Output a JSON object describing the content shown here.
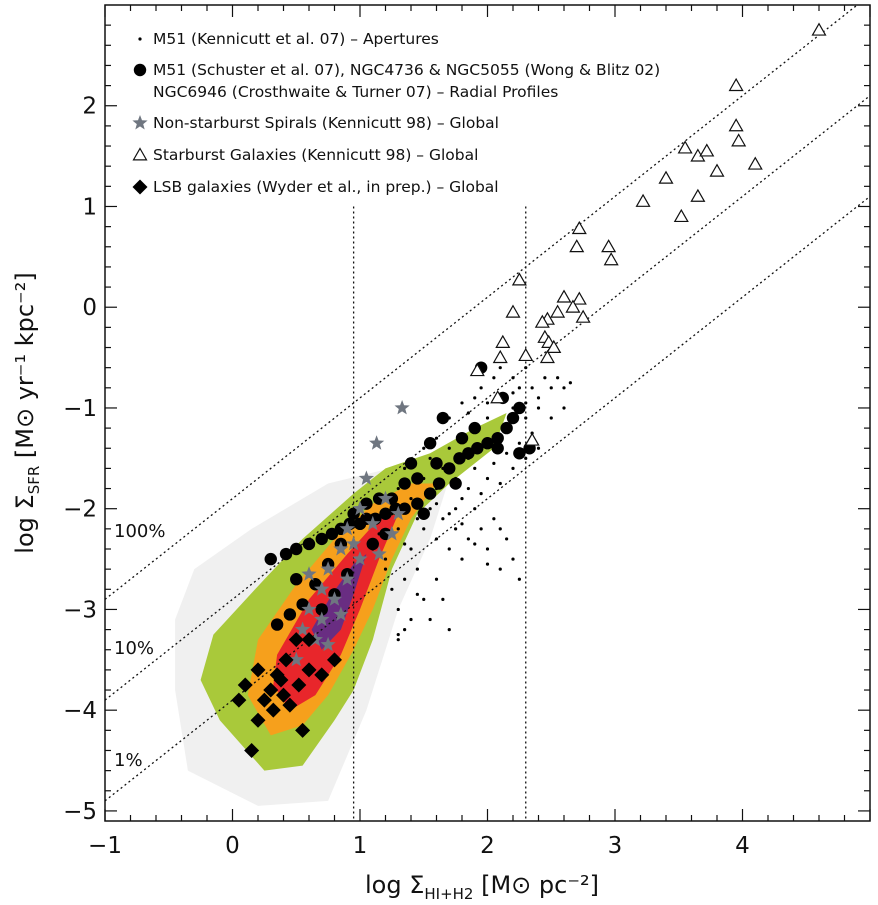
{
  "chart_data": {
    "type": "scatter",
    "title": "",
    "xlabel": {
      "prefix": "log Σ",
      "sub": "HI+H2",
      "unit": " [M⊙ pc⁻²]"
    },
    "ylabel": {
      "prefix": "log Σ",
      "sub": "SFR",
      "unit": " [M⊙ yr⁻¹ kpc⁻²]"
    },
    "xlim": [
      -1,
      5
    ],
    "ylim": [
      -5.1,
      3.0
    ],
    "x_ticks": [
      -1,
      0,
      1,
      2,
      3,
      4
    ],
    "y_ticks": [
      -5,
      -4,
      -3,
      -2,
      -1,
      0,
      1,
      2
    ],
    "grid": false,
    "legend_position": "top-left",
    "colors": {
      "marker_dark": "#000000",
      "star": "#6f7680",
      "contour_green": "#a9c93a",
      "contour_orange": "#f6a01c",
      "contour_red": "#e8262b",
      "contour_purple": "#5b2f8c",
      "background_grey": "#e9e9e9"
    },
    "legend": [
      {
        "marker": "dot",
        "label": "M51 (Kennicutt et al. 07) – Apertures"
      },
      {
        "marker": "circle",
        "label": "M51 (Schuster et al. 07), NGC4736 & NGC5055 (Wong & Blitz 02)"
      },
      {
        "marker": "none",
        "label": "NGC6946 (Crosthwaite & Turner 07) – Radial Profiles"
      },
      {
        "marker": "star",
        "label": "Non-starburst Spirals (Kennicutt 98) – Global"
      },
      {
        "marker": "triangle",
        "label": "Starburst Galaxies (Kennicutt 98) – Global"
      },
      {
        "marker": "diamond",
        "label": "LSB galaxies (Wyder et al., in prep.) – Global"
      }
    ],
    "efficiency_lines": [
      {
        "label": "100%",
        "intercept": -1.9
      },
      {
        "label": "10%",
        "intercept": -2.9
      },
      {
        "label": "1%",
        "intercept": -3.9
      }
    ],
    "vertical_lines_x": [
      0.95,
      2.3
    ],
    "series": [
      {
        "marker": "dot",
        "points": [
          [
            1.3,
            -1.8
          ],
          [
            1.35,
            -1.6
          ],
          [
            1.4,
            -1.9
          ],
          [
            1.5,
            -1.7
          ],
          [
            1.55,
            -1.5
          ],
          [
            1.6,
            -1.8
          ],
          [
            1.65,
            -1.6
          ],
          [
            1.7,
            -1.4
          ],
          [
            1.75,
            -1.7
          ],
          [
            1.8,
            -1.3
          ],
          [
            1.85,
            -1.5
          ],
          [
            1.9,
            -1.2
          ],
          [
            1.95,
            -1.4
          ],
          [
            2.0,
            -1.1
          ],
          [
            2.05,
            -1.3
          ],
          [
            2.1,
            -0.9
          ],
          [
            2.15,
            -1.2
          ],
          [
            2.2,
            -1.0
          ],
          [
            2.25,
            -0.8
          ],
          [
            2.3,
            -1.1
          ],
          [
            1.95,
            -0.8
          ],
          [
            2.05,
            -0.7
          ],
          [
            2.1,
            -0.6
          ],
          [
            2.2,
            -0.7
          ],
          [
            2.3,
            -0.6
          ],
          [
            2.4,
            -0.9
          ],
          [
            2.45,
            -0.7
          ],
          [
            2.5,
            -0.8
          ],
          [
            2.55,
            -0.7
          ],
          [
            2.6,
            -0.8
          ],
          [
            2.65,
            -0.75
          ],
          [
            2.35,
            -0.8
          ],
          [
            2.4,
            -1.0
          ],
          [
            2.5,
            -1.1
          ],
          [
            2.6,
            -1.0
          ],
          [
            1.8,
            -0.95
          ],
          [
            1.85,
            -1.05
          ],
          [
            1.9,
            -0.9
          ],
          [
            2.0,
            -0.95
          ],
          [
            1.7,
            -1.1
          ],
          [
            1.6,
            -1.3
          ],
          [
            1.5,
            -1.4
          ],
          [
            1.45,
            -2.1
          ],
          [
            1.5,
            -2.2
          ],
          [
            1.55,
            -2.0
          ],
          [
            1.6,
            -2.3
          ],
          [
            1.65,
            -2.1
          ],
          [
            1.7,
            -2.4
          ],
          [
            1.75,
            -2.2
          ],
          [
            1.8,
            -2.5
          ],
          [
            1.85,
            -2.3
          ],
          [
            1.9,
            -2.0
          ],
          [
            1.95,
            -2.2
          ],
          [
            2.0,
            -2.4
          ],
          [
            2.05,
            -2.1
          ],
          [
            2.1,
            -2.6
          ],
          [
            2.15,
            -2.3
          ],
          [
            2.2,
            -2.5
          ],
          [
            2.25,
            -2.7
          ],
          [
            1.2,
            -2.5
          ],
          [
            1.25,
            -2.8
          ],
          [
            1.3,
            -3.0
          ],
          [
            1.35,
            -2.7
          ],
          [
            1.4,
            -3.1
          ],
          [
            1.3,
            -3.3
          ],
          [
            1.5,
            -2.9
          ],
          [
            1.55,
            -3.1
          ],
          [
            1.6,
            -2.7
          ],
          [
            1.65,
            -2.9
          ],
          [
            1.7,
            -3.2
          ],
          [
            1.4,
            -2.4
          ],
          [
            1.45,
            -2.6
          ],
          [
            1.75,
            -2.0
          ],
          [
            1.8,
            -1.9
          ],
          [
            1.85,
            -1.8
          ],
          [
            1.9,
            -1.6
          ],
          [
            1.95,
            -1.85
          ],
          [
            2.0,
            -1.7
          ],
          [
            2.05,
            -1.55
          ],
          [
            2.1,
            -1.75
          ],
          [
            2.15,
            -1.45
          ],
          [
            2.2,
            -1.6
          ],
          [
            2.25,
            -1.35
          ],
          [
            2.3,
            -1.5
          ],
          [
            2.35,
            -1.25
          ],
          [
            2.4,
            -1.4
          ],
          [
            1.25,
            -2.05
          ],
          [
            1.3,
            -2.2
          ],
          [
            1.35,
            -2.35
          ],
          [
            1.15,
            -2.25
          ],
          [
            1.1,
            -2.4
          ],
          [
            1.2,
            -2.6
          ],
          [
            1.6,
            -1.95
          ],
          [
            1.7,
            -2.05
          ],
          [
            1.8,
            -2.15
          ],
          [
            1.9,
            -2.35
          ],
          [
            2.0,
            -2.55
          ],
          [
            2.1,
            -2.2
          ],
          [
            1.3,
            -3.25
          ],
          [
            1.35,
            -3.2
          ],
          [
            1.45,
            -2.85
          ],
          [
            2.3,
            -0.95
          ],
          [
            2.2,
            -0.85
          ]
        ]
      },
      {
        "marker": "circle",
        "points": [
          [
            0.3,
            -2.5
          ],
          [
            0.42,
            -2.45
          ],
          [
            0.5,
            -2.4
          ],
          [
            0.6,
            -2.35
          ],
          [
            0.7,
            -2.3
          ],
          [
            0.78,
            -2.25
          ],
          [
            0.85,
            -2.2
          ],
          [
            0.92,
            -2.15
          ],
          [
            1.0,
            -2.15
          ],
          [
            1.05,
            -2.1
          ],
          [
            1.12,
            -2.1
          ],
          [
            1.2,
            -2.05
          ],
          [
            1.28,
            -2.0
          ],
          [
            1.35,
            -2.0
          ],
          [
            1.45,
            -1.95
          ],
          [
            1.55,
            -1.85
          ],
          [
            1.62,
            -1.75
          ],
          [
            1.7,
            -1.6
          ],
          [
            1.78,
            -1.5
          ],
          [
            1.85,
            -1.45
          ],
          [
            1.92,
            -1.4
          ],
          [
            2.0,
            -1.35
          ],
          [
            2.08,
            -1.3
          ],
          [
            2.15,
            -1.2
          ],
          [
            2.2,
            -1.1
          ],
          [
            2.25,
            -1.0
          ],
          [
            2.33,
            -1.4
          ],
          [
            1.65,
            -1.1
          ],
          [
            1.55,
            -1.35
          ],
          [
            1.6,
            -1.55
          ],
          [
            1.45,
            -1.7
          ],
          [
            1.35,
            -1.75
          ],
          [
            1.25,
            -1.9
          ],
          [
            1.15,
            -1.9
          ],
          [
            1.05,
            -1.95
          ],
          [
            0.95,
            -2.05
          ],
          [
            0.85,
            -2.35
          ],
          [
            0.75,
            -2.55
          ],
          [
            0.65,
            -2.75
          ],
          [
            0.55,
            -2.95
          ],
          [
            0.45,
            -3.05
          ],
          [
            0.35,
            -3.15
          ],
          [
            0.5,
            -2.7
          ],
          [
            1.95,
            -0.6
          ],
          [
            2.12,
            -0.9
          ],
          [
            1.9,
            -1.2
          ],
          [
            2.08,
            -1.4
          ],
          [
            1.8,
            -1.3
          ],
          [
            2.25,
            -1.45
          ],
          [
            1.75,
            -1.75
          ],
          [
            1.2,
            -2.25
          ],
          [
            1.1,
            -2.35
          ],
          [
            0.9,
            -2.65
          ],
          [
            0.8,
            -2.85
          ],
          [
            0.7,
            -3.0
          ],
          [
            1.5,
            -2.05
          ],
          [
            1.4,
            -1.55
          ]
        ]
      },
      {
        "marker": "star",
        "points": [
          [
            1.33,
            -1.0
          ],
          [
            1.13,
            -1.35
          ],
          [
            1.05,
            -1.7
          ],
          [
            1.2,
            -1.9
          ],
          [
            1.0,
            -2.0
          ],
          [
            0.9,
            -2.2
          ],
          [
            1.1,
            -2.15
          ],
          [
            0.95,
            -2.35
          ],
          [
            0.85,
            -2.4
          ],
          [
            1.0,
            -2.5
          ],
          [
            0.75,
            -2.6
          ],
          [
            0.9,
            -2.7
          ],
          [
            0.7,
            -2.8
          ],
          [
            0.8,
            -2.9
          ],
          [
            0.6,
            -3.0
          ],
          [
            0.7,
            -3.1
          ],
          [
            0.55,
            -3.2
          ],
          [
            0.65,
            -3.3
          ],
          [
            0.75,
            -3.35
          ],
          [
            0.6,
            -2.65
          ],
          [
            0.5,
            -3.5
          ],
          [
            1.3,
            -2.05
          ],
          [
            1.15,
            -2.45
          ],
          [
            1.25,
            -2.25
          ],
          [
            0.85,
            -3.05
          ]
        ]
      },
      {
        "marker": "triangle",
        "points": [
          [
            4.6,
            2.75
          ],
          [
            3.95,
            2.2
          ],
          [
            3.95,
            1.8
          ],
          [
            3.97,
            1.65
          ],
          [
            4.1,
            1.42
          ],
          [
            3.55,
            1.58
          ],
          [
            3.65,
            1.5
          ],
          [
            3.72,
            1.55
          ],
          [
            3.8,
            1.35
          ],
          [
            3.4,
            1.28
          ],
          [
            3.65,
            1.1
          ],
          [
            3.22,
            1.05
          ],
          [
            3.52,
            0.9
          ],
          [
            2.72,
            0.78
          ],
          [
            2.7,
            0.6
          ],
          [
            2.95,
            0.6
          ],
          [
            2.97,
            0.47
          ],
          [
            2.6,
            0.1
          ],
          [
            2.72,
            0.08
          ],
          [
            2.67,
            0.0
          ],
          [
            2.75,
            -0.1
          ],
          [
            2.55,
            -0.05
          ],
          [
            2.47,
            -0.12
          ],
          [
            2.43,
            -0.15
          ],
          [
            2.25,
            0.27
          ],
          [
            2.2,
            -0.05
          ],
          [
            2.12,
            -0.35
          ],
          [
            2.1,
            -0.5
          ],
          [
            1.92,
            -0.63
          ],
          [
            2.3,
            -0.48
          ],
          [
            2.45,
            -0.3
          ],
          [
            2.48,
            -0.35
          ],
          [
            2.52,
            -0.4
          ],
          [
            2.47,
            -0.5
          ],
          [
            2.35,
            -1.32
          ],
          [
            2.08,
            -0.9
          ]
        ]
      },
      {
        "marker": "diamond",
        "points": [
          [
            0.5,
            -3.3
          ],
          [
            0.42,
            -3.5
          ],
          [
            0.35,
            -3.65
          ],
          [
            0.3,
            -3.8
          ],
          [
            0.4,
            -3.85
          ],
          [
            0.2,
            -3.6
          ],
          [
            0.52,
            -3.75
          ],
          [
            0.25,
            -3.9
          ],
          [
            0.32,
            -4.0
          ],
          [
            0.1,
            -3.75
          ],
          [
            0.05,
            -3.9
          ],
          [
            0.2,
            -4.1
          ],
          [
            0.45,
            -3.95
          ],
          [
            0.6,
            -3.6
          ],
          [
            0.7,
            -3.65
          ],
          [
            0.55,
            -4.2
          ],
          [
            0.15,
            -4.4
          ],
          [
            0.38,
            -3.7
          ],
          [
            0.6,
            -3.3
          ],
          [
            0.8,
            -3.5
          ]
        ]
      }
    ]
  }
}
